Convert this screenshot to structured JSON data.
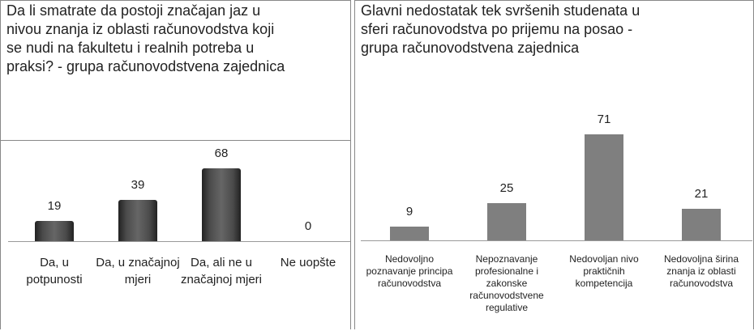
{
  "chart_data": [
    {
      "type": "bar",
      "title": "Da li smatrate da postoji značajan jaz u nivou znanja iz oblasti računovodstva koji se nudi na fakultetu i realnih potreba u praksi? - grupa računovodstvena zajednica",
      "categories": [
        "Da, u potpunosti",
        "Da, u značajnoj mjeri",
        "Da, ali ne u značajnoj mjeri",
        "Ne uopšte"
      ],
      "values": [
        19,
        39,
        68,
        0
      ],
      "color": "#4a4a4a"
    },
    {
      "type": "bar",
      "title": "Glavni nedostatak tek svršenih studenata u sferi računovodstva po prijemu na posao - grupa računovodstvena zajednica",
      "categories": [
        "Nedovoljno poznavanje principa računovodstva",
        "Nepoznavanje profesionalne i zakonske računovodstvene regulative",
        "Nedovoljan nivo praktičnih kompetencija",
        "Nedovoljna širina znanja iz oblasti računovodstva"
      ],
      "values": [
        9,
        25,
        71,
        21
      ],
      "color": "#7f7f7f"
    }
  ]
}
